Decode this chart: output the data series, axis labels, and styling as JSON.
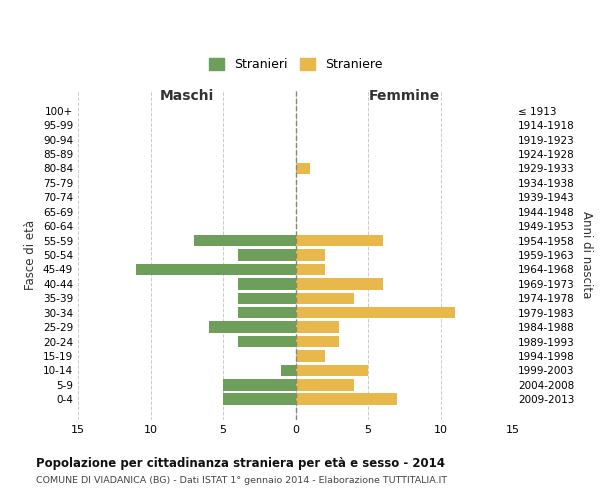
{
  "age_groups": [
    "100+",
    "95-99",
    "90-94",
    "85-89",
    "80-84",
    "75-79",
    "70-74",
    "65-69",
    "60-64",
    "55-59",
    "50-54",
    "45-49",
    "40-44",
    "35-39",
    "30-34",
    "25-29",
    "20-24",
    "15-19",
    "10-14",
    "5-9",
    "0-4"
  ],
  "birth_years": [
    "≤ 1913",
    "1914-1918",
    "1919-1923",
    "1924-1928",
    "1929-1933",
    "1934-1938",
    "1939-1943",
    "1944-1948",
    "1949-1953",
    "1954-1958",
    "1959-1963",
    "1964-1968",
    "1969-1973",
    "1974-1978",
    "1979-1983",
    "1984-1988",
    "1989-1993",
    "1994-1998",
    "1999-2003",
    "2004-2008",
    "2009-2013"
  ],
  "maschi": [
    0,
    0,
    0,
    0,
    0,
    0,
    0,
    0,
    0,
    7,
    4,
    11,
    4,
    4,
    4,
    6,
    4,
    0,
    1,
    5,
    5
  ],
  "femmine": [
    0,
    0,
    0,
    0,
    1,
    0,
    0,
    0,
    0,
    6,
    2,
    2,
    6,
    4,
    11,
    3,
    3,
    2,
    5,
    4,
    7
  ],
  "maschi_color": "#6d9e5a",
  "femmine_color": "#e8b84b",
  "title": "Popolazione per cittadinanza straniera per età e sesso - 2014",
  "subtitle": "COMUNE DI VIADANICA (BG) - Dati ISTAT 1° gennaio 2014 - Elaborazione TUTTITALIA.IT",
  "xlabel_left": "Maschi",
  "xlabel_right": "Femmine",
  "ylabel_left": "Fasce di età",
  "ylabel_right": "Anni di nascita",
  "legend_maschi": "Stranieri",
  "legend_femmine": "Straniere",
  "xlim": 15,
  "background_color": "#ffffff",
  "grid_color": "#cccccc",
  "bar_height": 0.8
}
